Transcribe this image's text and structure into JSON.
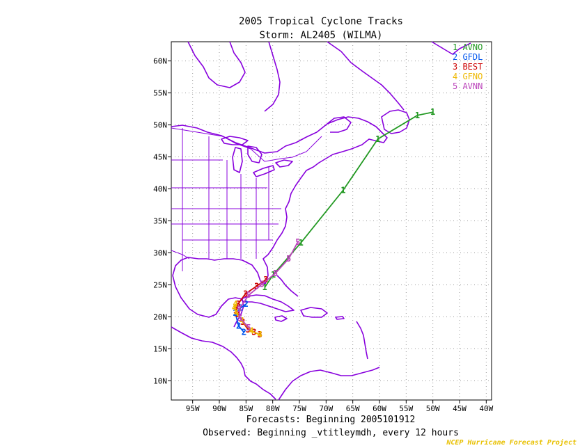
{
  "header": {
    "title": "2005 Tropical Cyclone Tracks",
    "subtitle": "Storm: AL2405 (WILMA)"
  },
  "footer": {
    "forecasts": "Forecasts: Beginning 2005101912",
    "observed": "Observed: Beginning _vtitleymdh, every 12 hours",
    "credit": "NCEP Hurricane Forecast Project"
  },
  "colors": {
    "land_outline": "#8800dd",
    "grid": "#999999",
    "credit": "#e8c000"
  },
  "chart_data": {
    "type": "line",
    "x_axis": {
      "range": [
        -99,
        -39
      ],
      "ticks": [
        "95W",
        "90W",
        "85W",
        "80W",
        "75W",
        "70W",
        "65W",
        "60W",
        "55W",
        "50W",
        "45W",
        "40W"
      ],
      "tick_values": [
        -95,
        -90,
        -85,
        -80,
        -75,
        -70,
        -65,
        -60,
        -55,
        -50,
        -45,
        -40
      ]
    },
    "y_axis": {
      "range": [
        7,
        63
      ],
      "ticks": [
        "10N",
        "15N",
        "20N",
        "25N",
        "30N",
        "35N",
        "40N",
        "45N",
        "50N",
        "55N",
        "60N"
      ],
      "tick_values": [
        10,
        15,
        20,
        25,
        30,
        35,
        40,
        45,
        50,
        55,
        60
      ]
    },
    "grid": true,
    "legend_position": "top-right",
    "series": [
      {
        "name": "1 AVNO",
        "color": "#229922",
        "marker": "1",
        "lon": [
          -81.5,
          -79.9,
          -74.7,
          -66.8,
          -60.3,
          -52.9,
          -50.0
        ],
        "lat": [
          24.6,
          26.6,
          31.6,
          39.8,
          47.8,
          51.5,
          52.0
        ]
      },
      {
        "name": "2 GFDL",
        "color": "#0055ee",
        "marker": "2",
        "lon": [
          -85.4,
          -86.4,
          -87.0,
          -86.0,
          -85.0
        ],
        "lat": [
          17.6,
          18.6,
          20.6,
          21.4,
          22.0
        ]
      },
      {
        "name": "3 BEST",
        "color": "#cc0000",
        "marker": "3",
        "lon": [
          -82.4,
          -83.5,
          -84.6,
          -85.6,
          -86.6,
          -86.9,
          -86.5,
          -85.1,
          -83.0,
          -81.3
        ],
        "lat": [
          17.2,
          17.6,
          18.0,
          19.2,
          20.4,
          21.0,
          22.0,
          23.6,
          24.8,
          25.8
        ]
      },
      {
        "name": "4 GFNO",
        "color": "#eeb800",
        "marker": "4",
        "lon": [
          -82.4,
          -84.0,
          -85.8,
          -86.8,
          -87.2,
          -87.0
        ],
        "lat": [
          17.2,
          17.8,
          19.4,
          20.6,
          21.4,
          22.0
        ]
      },
      {
        "name": "5 AVNN",
        "color": "#bb44bb",
        "marker": "5",
        "lon": [
          -84.5,
          -86.1,
          -86.3,
          -84.5,
          -82.0,
          -79.5,
          -77.0,
          -75.3
        ],
        "lat": [
          18.3,
          19.8,
          21.2,
          23.4,
          25.1,
          26.8,
          29.1,
          31.7
        ]
      }
    ]
  }
}
